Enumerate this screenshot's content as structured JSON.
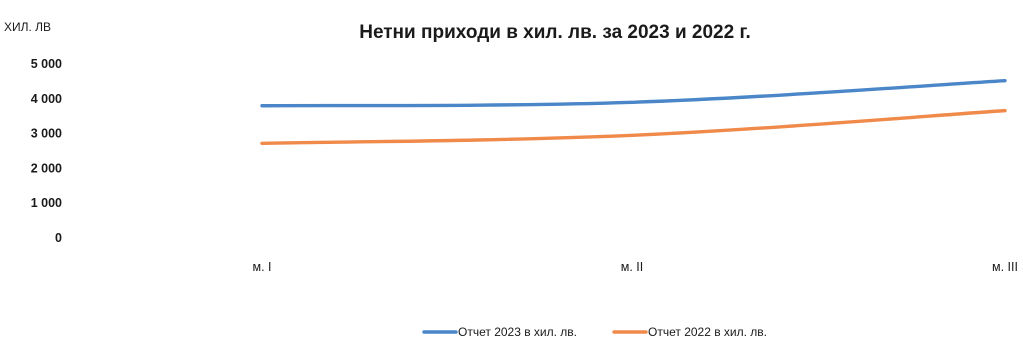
{
  "chart_data": {
    "type": "line",
    "title": "Нетни приходи в хил. лв. за 2023 и 2022 г.",
    "ylabel": "ХИЛ. ЛВ",
    "xlabel": "",
    "categories": [
      "м. I",
      "м. II",
      "м. III"
    ],
    "yticks": [
      0,
      1000,
      2000,
      3000,
      4000,
      5000
    ],
    "ytick_labels": [
      "0",
      "1 000",
      "2 000",
      "3 000",
      "4 000",
      "5 000"
    ],
    "ylim": [
      0,
      5000
    ],
    "grid": false,
    "legend_position": "bottom",
    "series": [
      {
        "name": "Отчет 2023 в хил. лв.",
        "color": "#4a86c8",
        "values": [
          3800,
          3900,
          4520
        ]
      },
      {
        "name": "Отчет 2022 в хил. лв.",
        "color": "#f08a4b",
        "values": [
          2720,
          2950,
          3660
        ]
      }
    ]
  }
}
